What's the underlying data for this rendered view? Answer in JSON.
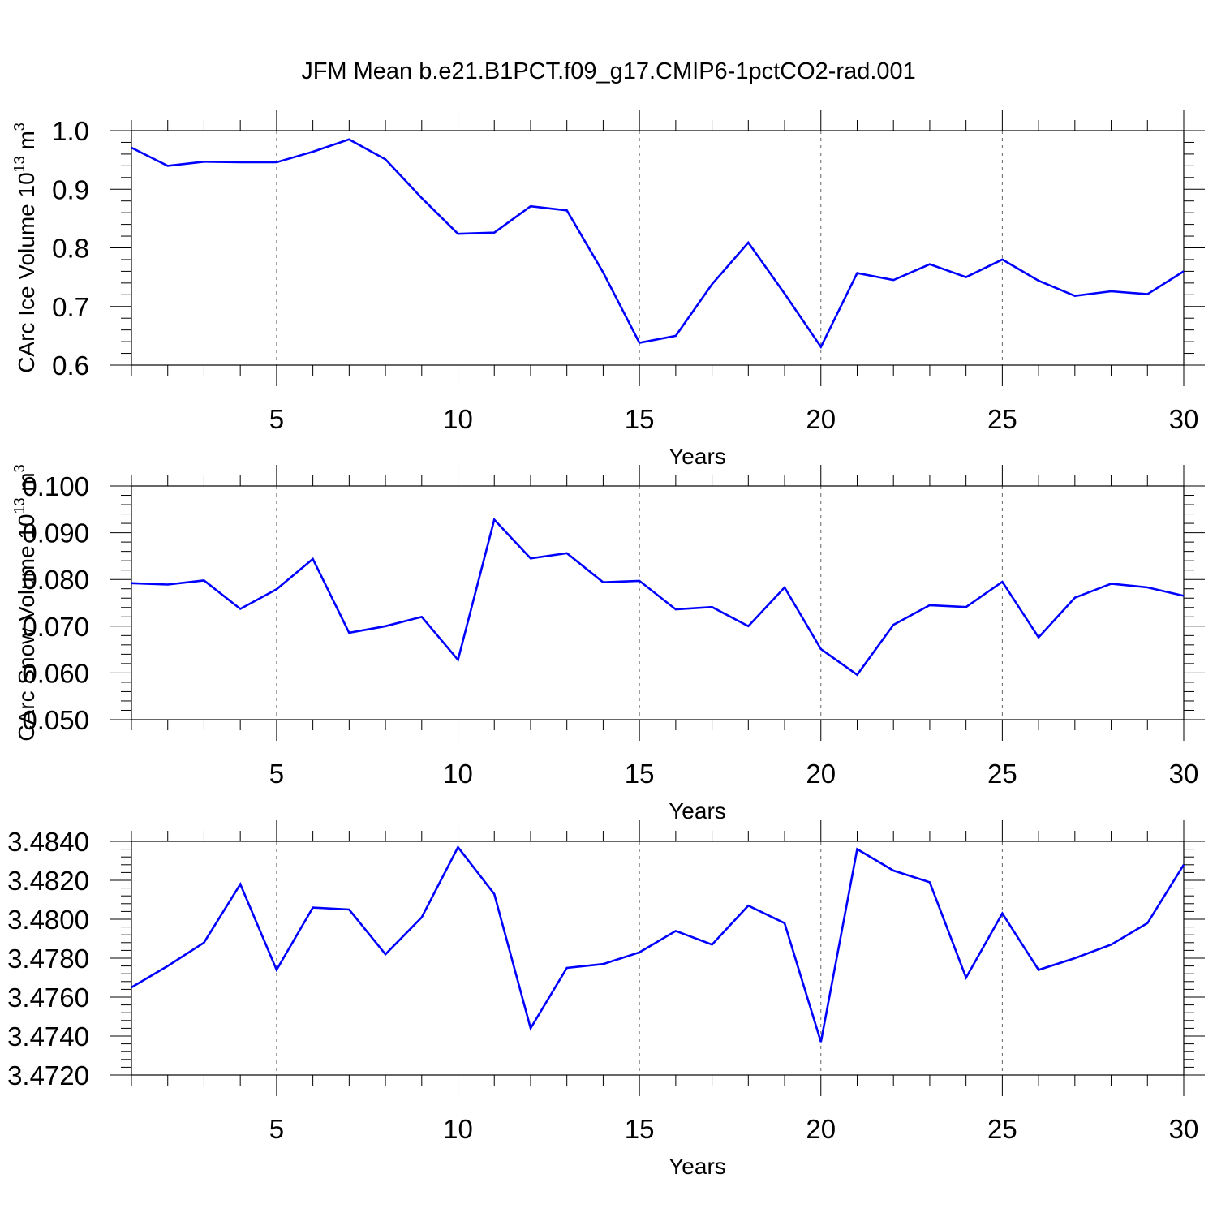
{
  "title": "JFM Mean b.e21.B1PCT.f09_g17.CMIP6-1pctCO2-rad.001",
  "colors": {
    "series": "#0000ff",
    "axis": "#000000",
    "grid": "#000000"
  },
  "chart_data": [
    {
      "type": "line",
      "xlabel": "Years",
      "ylabel": "CArc Ice Volume 10",
      "ylabel_exponent": "13",
      "ylabel_unit": "m",
      "ylabel_unit_exponent": "3",
      "xlim": [
        1,
        30
      ],
      "ylim": [
        0.6,
        1.0
      ],
      "xticks": [
        5,
        10,
        15,
        20,
        25,
        30
      ],
      "yticks": [
        0.6,
        0.7,
        0.8,
        0.9,
        1.0
      ],
      "ytick_labels": [
        "0.6",
        "0.7",
        "0.8",
        "0.9",
        "1.0"
      ],
      "grid": "vertical dashed at major x ticks",
      "x": [
        1,
        2,
        3,
        4,
        5,
        6,
        7,
        8,
        9,
        10,
        11,
        12,
        13,
        14,
        15,
        16,
        17,
        18,
        19,
        20,
        21,
        22,
        23,
        24,
        25,
        26,
        27,
        28,
        29,
        30
      ],
      "series": [
        {
          "values": [
            0.971,
            0.94,
            0.947,
            0.946,
            0.946,
            0.964,
            0.985,
            0.951,
            0.885,
            0.824,
            0.826,
            0.871,
            0.864,
            0.758,
            0.638,
            0.65,
            0.738,
            0.809,
            0.722,
            0.631,
            0.757,
            0.745,
            0.772,
            0.75,
            0.78,
            0.744,
            0.718,
            0.726,
            0.721,
            0.76
          ]
        }
      ]
    },
    {
      "type": "line",
      "xlabel": "Years",
      "ylabel": "CArc Snow Volume 10",
      "ylabel_exponent": "13",
      "ylabel_unit": "m",
      "ylabel_unit_exponent": "3",
      "xlim": [
        1,
        30
      ],
      "ylim": [
        0.05,
        0.1
      ],
      "xticks": [
        5,
        10,
        15,
        20,
        25,
        30
      ],
      "yticks": [
        0.05,
        0.06,
        0.07,
        0.08,
        0.09,
        0.1
      ],
      "ytick_labels": [
        "0.050",
        "0.060",
        "0.070",
        "0.080",
        "0.090",
        "0.100"
      ],
      "grid": "vertical dashed at major x ticks",
      "x": [
        1,
        2,
        3,
        4,
        5,
        6,
        7,
        8,
        9,
        10,
        11,
        12,
        13,
        14,
        15,
        16,
        17,
        18,
        19,
        20,
        21,
        22,
        23,
        24,
        25,
        26,
        27,
        28,
        29,
        30
      ],
      "series": [
        {
          "values": [
            0.0792,
            0.0789,
            0.0798,
            0.0737,
            0.0779,
            0.0844,
            0.0686,
            0.07,
            0.072,
            0.0628,
            0.0928,
            0.0845,
            0.0856,
            0.0794,
            0.0797,
            0.0736,
            0.0741,
            0.07,
            0.0783,
            0.0651,
            0.0596,
            0.0703,
            0.0745,
            0.0741,
            0.0795,
            0.0676,
            0.0761,
            0.0791,
            0.0783,
            0.0765
          ]
        }
      ]
    },
    {
      "type": "line",
      "xlabel": "Years",
      "ylabel": "",
      "xlim": [
        1,
        30
      ],
      "ylim": [
        3.472,
        3.484
      ],
      "xticks": [
        5,
        10,
        15,
        20,
        25,
        30
      ],
      "yticks": [
        3.472,
        3.474,
        3.476,
        3.478,
        3.48,
        3.482,
        3.484
      ],
      "ytick_labels": [
        "3.4720",
        "3.4740",
        "3.4760",
        "3.4780",
        "3.4800",
        "3.4820",
        "3.4840"
      ],
      "grid": "vertical dashed at major x ticks",
      "x": [
        1,
        2,
        3,
        4,
        5,
        6,
        7,
        8,
        9,
        10,
        11,
        12,
        13,
        14,
        15,
        16,
        17,
        18,
        19,
        20,
        21,
        22,
        23,
        24,
        25,
        26,
        27,
        28,
        29,
        30
      ],
      "series": [
        {
          "values": [
            3.4765,
            3.4776,
            3.4788,
            3.4818,
            3.4774,
            3.4806,
            3.4805,
            3.4782,
            3.4801,
            3.4837,
            3.4813,
            3.4744,
            3.4775,
            3.4777,
            3.4783,
            3.4794,
            3.4787,
            3.4807,
            3.4798,
            3.4737,
            3.4836,
            3.4825,
            3.4819,
            3.477,
            3.4803,
            3.4774,
            3.478,
            3.4787,
            3.4798,
            3.4828
          ]
        }
      ]
    }
  ]
}
